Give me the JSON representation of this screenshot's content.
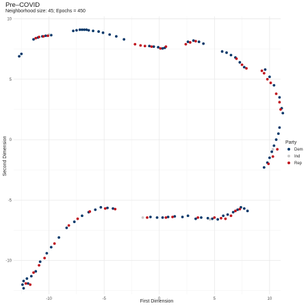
{
  "chart_data": {
    "type": "scatter",
    "title": "Pre–COVID",
    "subtitle": "Neighborhood size: 45; Epochs = 450",
    "xlabel": "First Dimension",
    "ylabel": "Second Dimension",
    "xlim": [
      -13.2,
      11.0
    ],
    "ylim": [
      -12.8,
      10.2
    ],
    "x_ticks": [
      -10,
      -5,
      0,
      5,
      10
    ],
    "y_ticks": [
      -10,
      -5,
      0,
      5,
      10
    ],
    "grid": true,
    "legend": {
      "title": "Party",
      "position": "right",
      "entries": [
        {
          "label": "Dem",
          "color": "#0b3a6b"
        },
        {
          "label": "Ind",
          "color": "#c8c8c8"
        },
        {
          "label": "Rep",
          "color": "#c0161f"
        }
      ]
    },
    "series": [
      {
        "name": "Dem",
        "color": "#0b3a6b",
        "points": [
          [
            -12.7,
            6.9
          ],
          [
            -12.5,
            7.1
          ],
          [
            -11.4,
            8.3
          ],
          [
            -11.0,
            8.45
          ],
          [
            -10.6,
            8.55
          ],
          [
            -10.3,
            8.6
          ],
          [
            -9.8,
            8.65
          ],
          [
            -7.8,
            9.0
          ],
          [
            -7.5,
            9.05
          ],
          [
            -7.2,
            9.1
          ],
          [
            -7.0,
            9.1
          ],
          [
            -6.8,
            9.1
          ],
          [
            -6.6,
            9.1
          ],
          [
            -6.4,
            9.05
          ],
          [
            -6.0,
            9.0
          ],
          [
            -5.5,
            8.95
          ],
          [
            -5.1,
            8.85
          ],
          [
            -4.5,
            8.7
          ],
          [
            -3.9,
            8.55
          ],
          [
            -3.2,
            8.3
          ],
          [
            -0.9,
            7.75
          ],
          [
            -0.5,
            7.7
          ],
          [
            -0.1,
            7.65
          ],
          [
            0.3,
            7.55
          ],
          [
            0.5,
            7.6
          ],
          [
            2.6,
            8.1
          ],
          [
            3.1,
            8.2
          ],
          [
            3.6,
            8.1
          ],
          [
            4.0,
            7.95
          ],
          [
            5.7,
            7.3
          ],
          [
            6.1,
            7.2
          ],
          [
            6.5,
            7.0
          ],
          [
            6.9,
            6.8
          ],
          [
            7.3,
            6.4
          ],
          [
            7.7,
            6.0
          ],
          [
            9.6,
            5.8
          ],
          [
            10.0,
            5.2
          ],
          [
            10.4,
            4.5
          ],
          [
            10.9,
            3.5
          ],
          [
            11.1,
            2.6
          ],
          [
            11.2,
            2.2
          ],
          [
            10.9,
            1.0
          ],
          [
            10.8,
            0.5
          ],
          [
            10.6,
            0.0
          ],
          [
            10.4,
            -0.5
          ],
          [
            10.2,
            -1.0
          ],
          [
            10.0,
            -1.5
          ],
          [
            9.8,
            -1.9
          ],
          [
            9.5,
            -2.3
          ],
          [
            -5.3,
            -5.6
          ],
          [
            -4.7,
            -5.65
          ],
          [
            -4.2,
            -5.7
          ],
          [
            -5.8,
            -5.8
          ],
          [
            -6.4,
            -6.0
          ],
          [
            -7.0,
            -6.3
          ],
          [
            -7.7,
            -6.8
          ],
          [
            -8.4,
            -7.3
          ],
          [
            -9.1,
            -8.1
          ],
          [
            -9.8,
            -8.9
          ],
          [
            -10.2,
            -9.4
          ],
          [
            -10.8,
            -10.1
          ],
          [
            -11.2,
            -10.9
          ],
          [
            -11.6,
            -11.3
          ],
          [
            -12.0,
            -11.5
          ],
          [
            -12.3,
            -11.7
          ],
          [
            -12.4,
            -12.0
          ],
          [
            -12.3,
            -12.3
          ],
          [
            -11.9,
            -11.9
          ],
          [
            -0.8,
            -6.4
          ],
          [
            -0.2,
            -6.45
          ],
          [
            0.3,
            -6.45
          ],
          [
            0.8,
            -6.4
          ],
          [
            1.4,
            -6.35
          ],
          [
            2.1,
            -6.4
          ],
          [
            2.6,
            -6.3
          ],
          [
            3.3,
            -6.55
          ],
          [
            3.8,
            -6.45
          ],
          [
            4.4,
            -6.5
          ],
          [
            4.8,
            -6.55
          ],
          [
            5.3,
            -6.6
          ],
          [
            5.8,
            -6.3
          ],
          [
            6.2,
            -6.2
          ],
          [
            6.7,
            -6.0
          ],
          [
            7.1,
            -5.8
          ],
          [
            7.4,
            -5.6
          ],
          [
            7.7,
            -5.7
          ],
          [
            8.0,
            -5.9
          ]
        ]
      },
      {
        "name": "Ind",
        "color": "#c8c8c8",
        "points": [
          [
            -10.0,
            8.7
          ],
          [
            -1.5,
            -6.45
          ],
          [
            4.6,
            -6.6
          ],
          [
            10.3,
            -0.8
          ]
        ]
      },
      {
        "name": "Rep",
        "color": "#c0161f",
        "points": [
          [
            -11.2,
            8.4
          ],
          [
            -10.9,
            8.5
          ],
          [
            -10.5,
            8.55
          ],
          [
            -10.1,
            8.6
          ],
          [
            -2.2,
            7.9
          ],
          [
            -1.7,
            7.8
          ],
          [
            -1.3,
            7.75
          ],
          [
            -0.7,
            7.7
          ],
          [
            0.1,
            7.55
          ],
          [
            0.6,
            7.7
          ],
          [
            2.4,
            7.9
          ],
          [
            2.8,
            8.05
          ],
          [
            3.3,
            8.15
          ],
          [
            7.0,
            6.7
          ],
          [
            7.5,
            6.2
          ],
          [
            7.9,
            5.9
          ],
          [
            9.3,
            5.7
          ],
          [
            9.5,
            5.5
          ],
          [
            9.8,
            5.0
          ],
          [
            10.1,
            4.7
          ],
          [
            10.6,
            3.8
          ],
          [
            10.9,
            3.1
          ],
          [
            11.0,
            2.5
          ],
          [
            10.7,
            -0.8
          ],
          [
            10.3,
            -1.4
          ],
          [
            9.9,
            -2.0
          ],
          [
            -4.0,
            -5.75
          ],
          [
            -4.9,
            -5.7
          ],
          [
            -6.3,
            -5.95
          ],
          [
            -7.4,
            -6.55
          ],
          [
            -8.2,
            -7.1
          ],
          [
            -9.5,
            -8.6
          ],
          [
            -10.4,
            -9.8
          ],
          [
            -10.9,
            -10.4
          ],
          [
            -11.4,
            -11.0
          ],
          [
            -12.1,
            -11.9
          ],
          [
            -11.7,
            -12.0
          ],
          [
            -1.1,
            -6.45
          ],
          [
            0.6,
            -6.45
          ],
          [
            1.2,
            -6.4
          ],
          [
            3.5,
            -6.45
          ],
          [
            5.0,
            -6.45
          ],
          [
            5.6,
            -6.5
          ],
          [
            6.0,
            -6.55
          ],
          [
            6.5,
            -6.3
          ],
          [
            6.9,
            -5.9
          ],
          [
            7.3,
            -5.75
          ]
        ]
      }
    ]
  }
}
